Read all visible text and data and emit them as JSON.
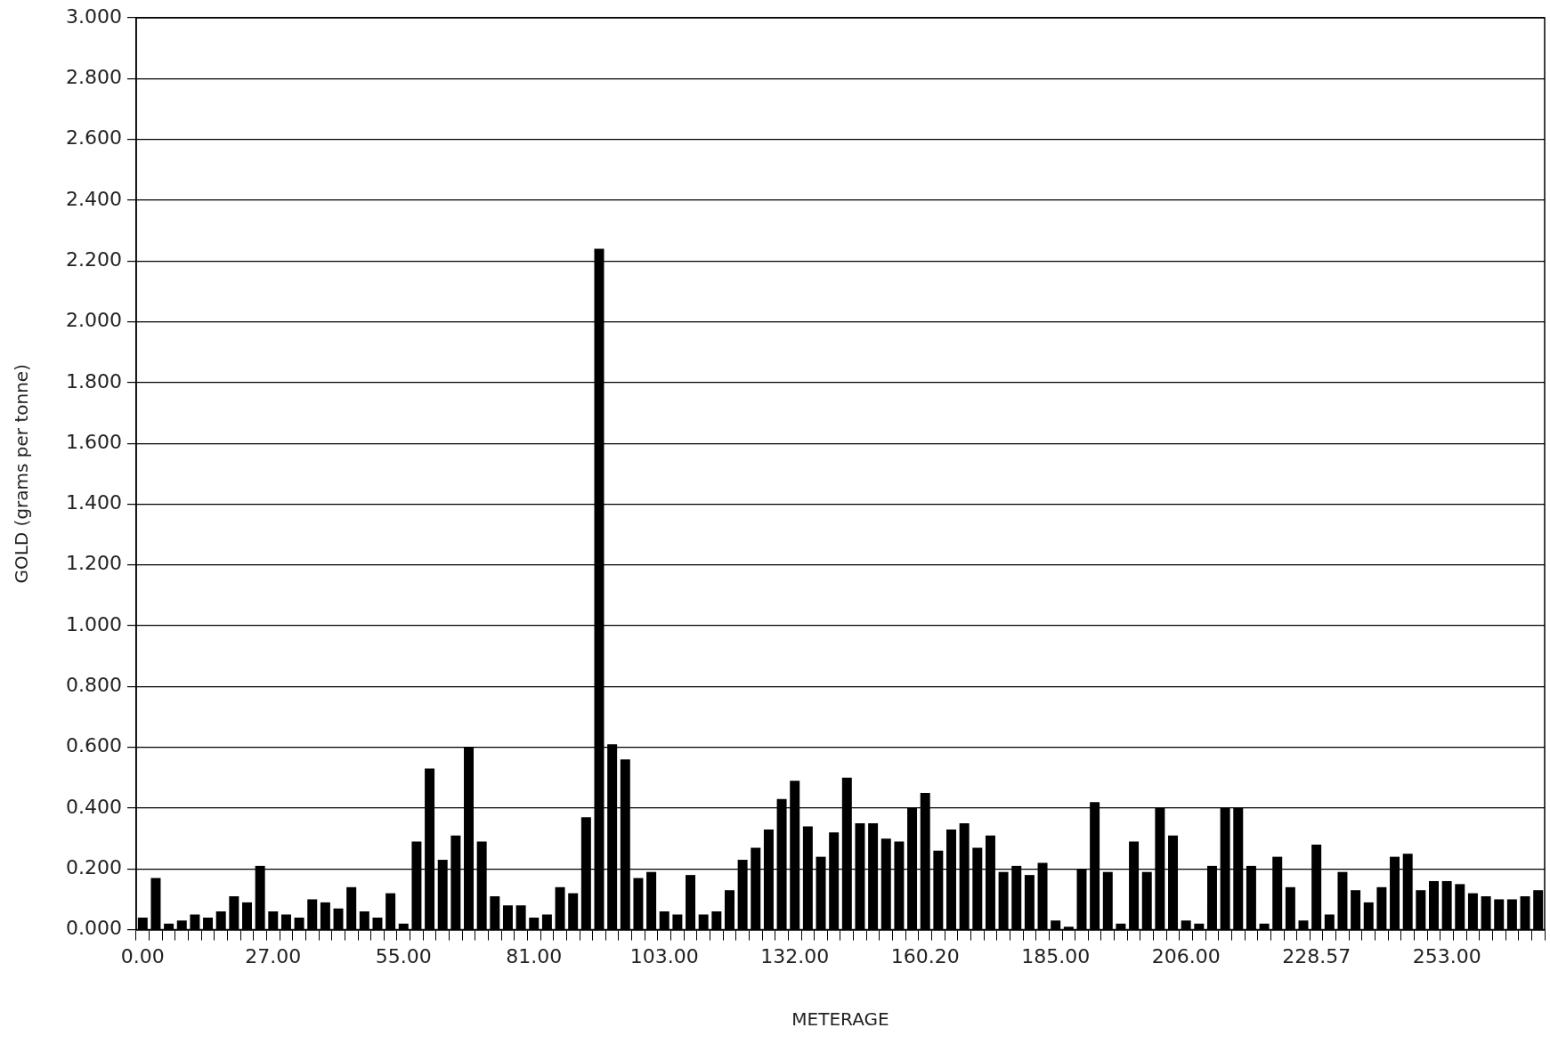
{
  "chart_data": {
    "type": "bar",
    "xlabel": "METERAGE",
    "ylabel": "GOLD (grams per tonne)",
    "categories": [
      "0.00",
      null,
      null,
      null,
      null,
      null,
      null,
      null,
      null,
      null,
      "27.00",
      null,
      null,
      null,
      null,
      null,
      null,
      null,
      null,
      null,
      "55.00",
      null,
      null,
      null,
      null,
      null,
      null,
      null,
      null,
      null,
      "81.00",
      null,
      null,
      null,
      null,
      null,
      null,
      null,
      null,
      null,
      "103.00",
      null,
      null,
      null,
      null,
      null,
      null,
      null,
      null,
      null,
      "132.00",
      null,
      null,
      null,
      null,
      null,
      null,
      null,
      null,
      null,
      "160.20",
      null,
      null,
      null,
      null,
      null,
      null,
      null,
      null,
      null,
      "185.00",
      null,
      null,
      null,
      null,
      null,
      null,
      null,
      null,
      null,
      "206.00",
      null,
      null,
      null,
      null,
      null,
      null,
      null,
      null,
      null,
      "228.57",
      null,
      null,
      null,
      null,
      null,
      null,
      null,
      null,
      null,
      "253.00",
      null,
      null,
      null,
      null,
      null,
      null,
      null
    ],
    "values": [
      0.04,
      0.17,
      0.02,
      0.03,
      0.05,
      0.04,
      0.06,
      0.11,
      0.09,
      0.21,
      0.06,
      0.05,
      0.04,
      0.1,
      0.09,
      0.07,
      0.14,
      0.06,
      0.04,
      0.12,
      0.02,
      0.29,
      0.53,
      0.23,
      0.31,
      0.6,
      0.29,
      0.11,
      0.08,
      0.08,
      0.04,
      0.05,
      0.14,
      0.12,
      0.37,
      2.24,
      0.61,
      0.56,
      0.17,
      0.19,
      0.06,
      0.05,
      0.18,
      0.05,
      0.06,
      0.13,
      0.23,
      0.27,
      0.33,
      0.43,
      0.49,
      0.34,
      0.24,
      0.32,
      0.5,
      0.35,
      0.35,
      0.3,
      0.29,
      0.4,
      0.45,
      0.26,
      0.33,
      0.35,
      0.27,
      0.31,
      0.19,
      0.21,
      0.18,
      0.22,
      0.03,
      0.01,
      0.2,
      0.42,
      0.19,
      0.02,
      0.29,
      0.19,
      0.4,
      0.31,
      0.03,
      0.02,
      0.21,
      0.4,
      0.4,
      0.21,
      0.02,
      0.24,
      0.14,
      0.03,
      0.28,
      0.05,
      0.19,
      0.13,
      0.09,
      0.14,
      0.24,
      0.25,
      0.13,
      0.16,
      0.16,
      0.15,
      0.12,
      0.11,
      0.1,
      0.1,
      0.11,
      0.13
    ],
    "color": "#000000",
    "ylim": [
      0,
      3
    ],
    "yticks": [
      {
        "value": 0,
        "label": "0.000"
      },
      {
        "value": 0.2,
        "label": "0.200"
      },
      {
        "value": 0.4,
        "label": "0.400"
      },
      {
        "value": 0.6,
        "label": "0.600"
      },
      {
        "value": 0.8,
        "label": "0.800"
      },
      {
        "value": 1,
        "label": "1.000"
      },
      {
        "value": 1.2,
        "label": "1.200"
      },
      {
        "value": 1.4,
        "label": "1.400"
      },
      {
        "value": 1.6,
        "label": "1.600"
      },
      {
        "value": 1.8,
        "label": "1.800"
      },
      {
        "value": 2,
        "label": "2.000"
      },
      {
        "value": 2.2,
        "label": "2.200"
      },
      {
        "value": 2.4,
        "label": "2.400"
      },
      {
        "value": 2.6,
        "label": "2.600"
      },
      {
        "value": 2.8,
        "label": "2.800"
      },
      {
        "value": 3,
        "label": "3.000"
      }
    ],
    "grid": "y"
  }
}
